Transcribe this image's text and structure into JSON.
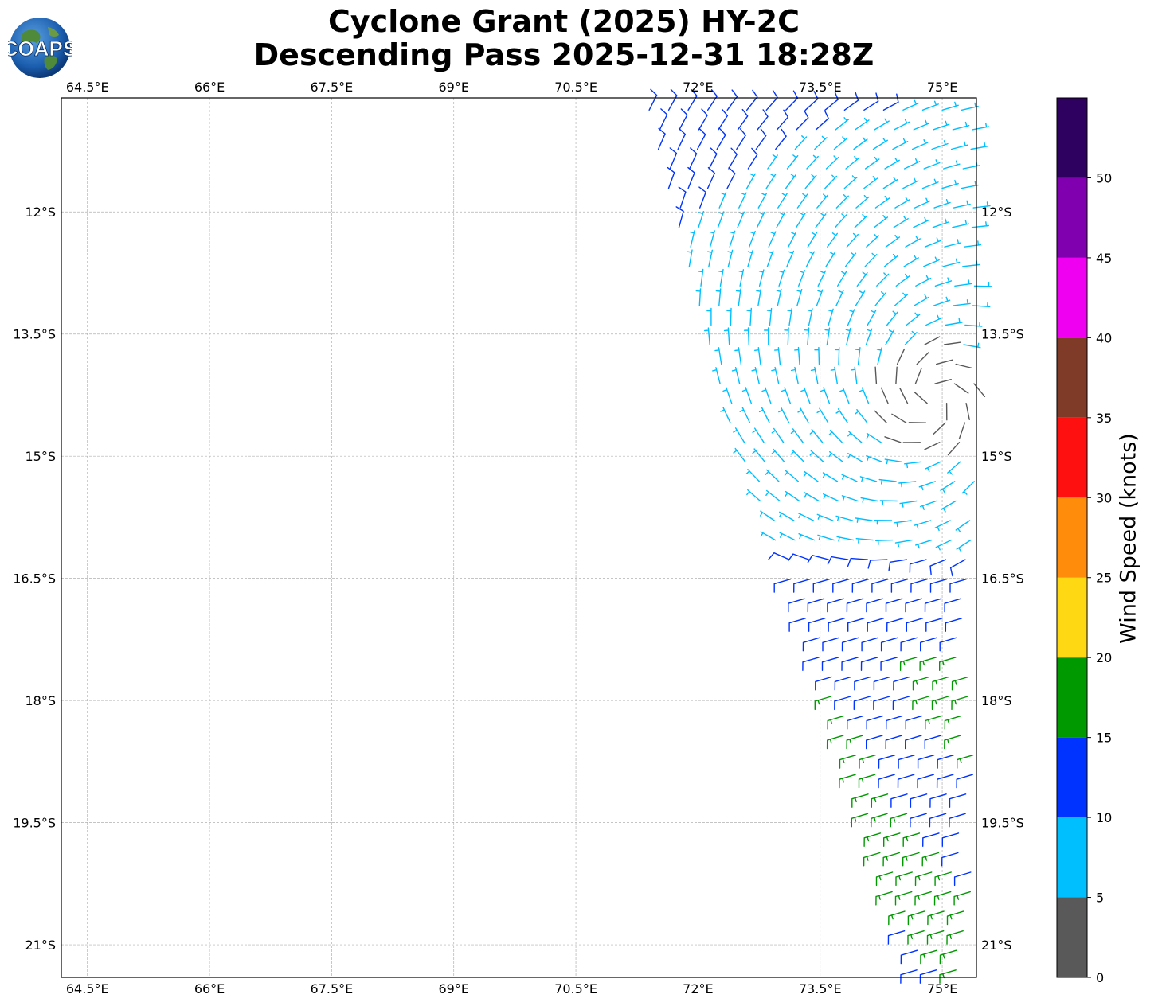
{
  "header": {
    "title_line1": "Cyclone Grant (2025) HY-2C",
    "title_line2": "Descending Pass 2025-12-31 18:28Z",
    "logo_text": "COAPS"
  },
  "map": {
    "lon_range": [
      64.18,
      75.42
    ],
    "lat_range": [
      -21.4,
      -10.6
    ],
    "lon_ticks": [
      {
        "value": 64.5,
        "label": "64.5°E"
      },
      {
        "value": 66,
        "label": "66°E"
      },
      {
        "value": 67.5,
        "label": "67.5°E"
      },
      {
        "value": 69,
        "label": "69°E"
      },
      {
        "value": 70.5,
        "label": "70.5°E"
      },
      {
        "value": 72,
        "label": "72°E"
      },
      {
        "value": 73.5,
        "label": "73.5°E"
      },
      {
        "value": 75,
        "label": "75°E"
      }
    ],
    "lat_ticks": [
      {
        "value": -12,
        "label": "12°S"
      },
      {
        "value": -13.5,
        "label": "13.5°S"
      },
      {
        "value": -15,
        "label": "15°S"
      },
      {
        "value": -16.5,
        "label": "16.5°S"
      },
      {
        "value": -18,
        "label": "18°S"
      },
      {
        "value": -19.5,
        "label": "19.5°S"
      },
      {
        "value": -21,
        "label": "21°S"
      }
    ],
    "grid": true,
    "swath_west_edge": [
      [
        71.4,
        -10.8
      ],
      [
        72.4,
        -14.6
      ],
      [
        73.4,
        -17.2
      ],
      [
        74.4,
        -20.4
      ],
      [
        74.7,
        -21.35
      ]
    ],
    "storm_center": {
      "lon": 74.9,
      "lat": -14.3
    },
    "wind_units": "knots"
  },
  "colorbar": {
    "label": "Wind Speed (knots)",
    "ticks": [
      "0",
      "5",
      "10",
      "15",
      "20",
      "25",
      "30",
      "35",
      "40",
      "45",
      "50"
    ],
    "bins": [
      {
        "min": 0,
        "max": 5,
        "color": "#595959"
      },
      {
        "min": 5,
        "max": 10,
        "color": "#00bfff"
      },
      {
        "min": 10,
        "max": 15,
        "color": "#0033ff"
      },
      {
        "min": 15,
        "max": 20,
        "color": "#009900"
      },
      {
        "min": 20,
        "max": 25,
        "color": "#ffd814"
      },
      {
        "min": 25,
        "max": 30,
        "color": "#ff8c0a"
      },
      {
        "min": 30,
        "max": 35,
        "color": "#ff1010"
      },
      {
        "min": 35,
        "max": 40,
        "color": "#803a28"
      },
      {
        "min": 40,
        "max": 45,
        "color": "#f000f0"
      },
      {
        "min": 45,
        "max": 50,
        "color": "#8000b0"
      },
      {
        "min": 50,
        "max": 55,
        "color": "#2e0060"
      }
    ]
  }
}
